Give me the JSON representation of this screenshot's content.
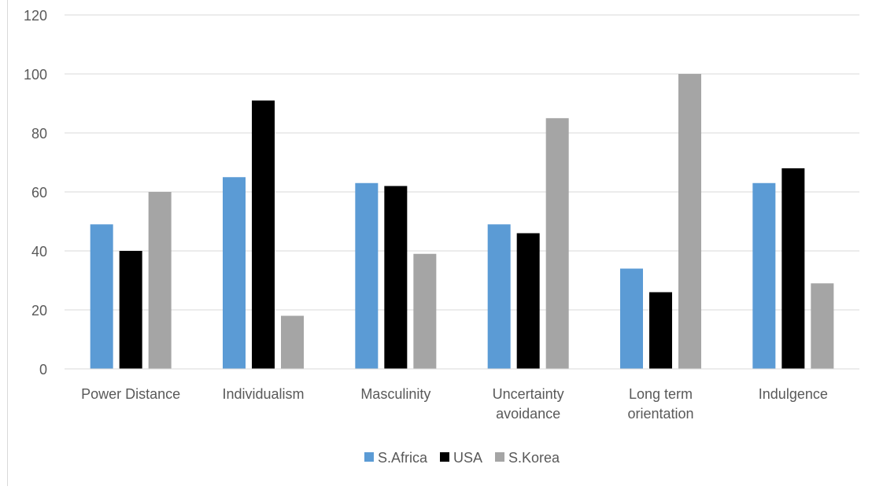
{
  "chart_data": {
    "type": "bar",
    "title": "",
    "xlabel": "",
    "ylabel": "",
    "ylim": [
      0,
      120
    ],
    "yticks": [
      0,
      20,
      40,
      60,
      80,
      100,
      120
    ],
    "grid": true,
    "legend_position": "bottom",
    "categories": [
      [
        "Power Distance"
      ],
      [
        "Individualism"
      ],
      [
        "Masculinity"
      ],
      [
        "Uncertainty",
        "avoidance"
      ],
      [
        "Long term",
        "orientation"
      ],
      [
        "Indulgence"
      ]
    ],
    "series": [
      {
        "name": "S.Africa",
        "color": "#5b9bd5",
        "values": [
          49,
          65,
          63,
          49,
          34,
          63
        ]
      },
      {
        "name": "USA",
        "color": "#000000",
        "values": [
          40,
          91,
          62,
          46,
          26,
          68
        ]
      },
      {
        "name": "S.Korea",
        "color": "#a5a5a5",
        "values": [
          60,
          18,
          39,
          85,
          100,
          29
        ]
      }
    ]
  }
}
